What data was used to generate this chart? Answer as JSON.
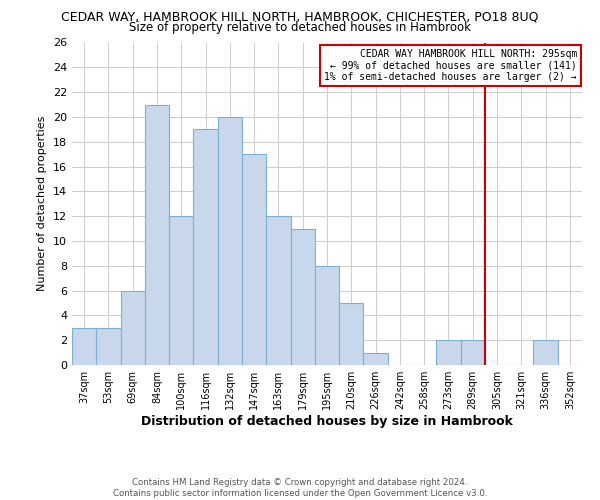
{
  "title": "CEDAR WAY, HAMBROOK HILL NORTH, HAMBROOK, CHICHESTER, PO18 8UQ",
  "subtitle": "Size of property relative to detached houses in Hambrook",
  "xlabel": "Distribution of detached houses by size in Hambrook",
  "ylabel": "Number of detached properties",
  "bar_labels": [
    "37sqm",
    "53sqm",
    "69sqm",
    "84sqm",
    "100sqm",
    "116sqm",
    "132sqm",
    "147sqm",
    "163sqm",
    "179sqm",
    "195sqm",
    "210sqm",
    "226sqm",
    "242sqm",
    "258sqm",
    "273sqm",
    "289sqm",
    "305sqm",
    "321sqm",
    "336sqm",
    "352sqm"
  ],
  "bar_values": [
    3,
    3,
    6,
    21,
    12,
    19,
    20,
    17,
    12,
    11,
    8,
    5,
    1,
    0,
    0,
    2,
    2,
    0,
    0,
    2,
    0
  ],
  "bar_color": "#c8d8ea",
  "bar_edge_color": "#7bafd4",
  "vline_x": 17.0,
  "vline_color": "#cc0000",
  "annotation_title": "CEDAR WAY HAMBROOK HILL NORTH: 295sqm",
  "annotation_line1": "← 99% of detached houses are smaller (141)",
  "annotation_line2": "1% of semi-detached houses are larger (2) →",
  "ylim": [
    0,
    26
  ],
  "yticks": [
    0,
    2,
    4,
    6,
    8,
    10,
    12,
    14,
    16,
    18,
    20,
    22,
    24,
    26
  ],
  "footer1": "Contains HM Land Registry data © Crown copyright and database right 2024.",
  "footer2": "Contains public sector information licensed under the Open Government Licence v3.0.",
  "background_color": "#ffffff",
  "grid_color": "#cccccc"
}
